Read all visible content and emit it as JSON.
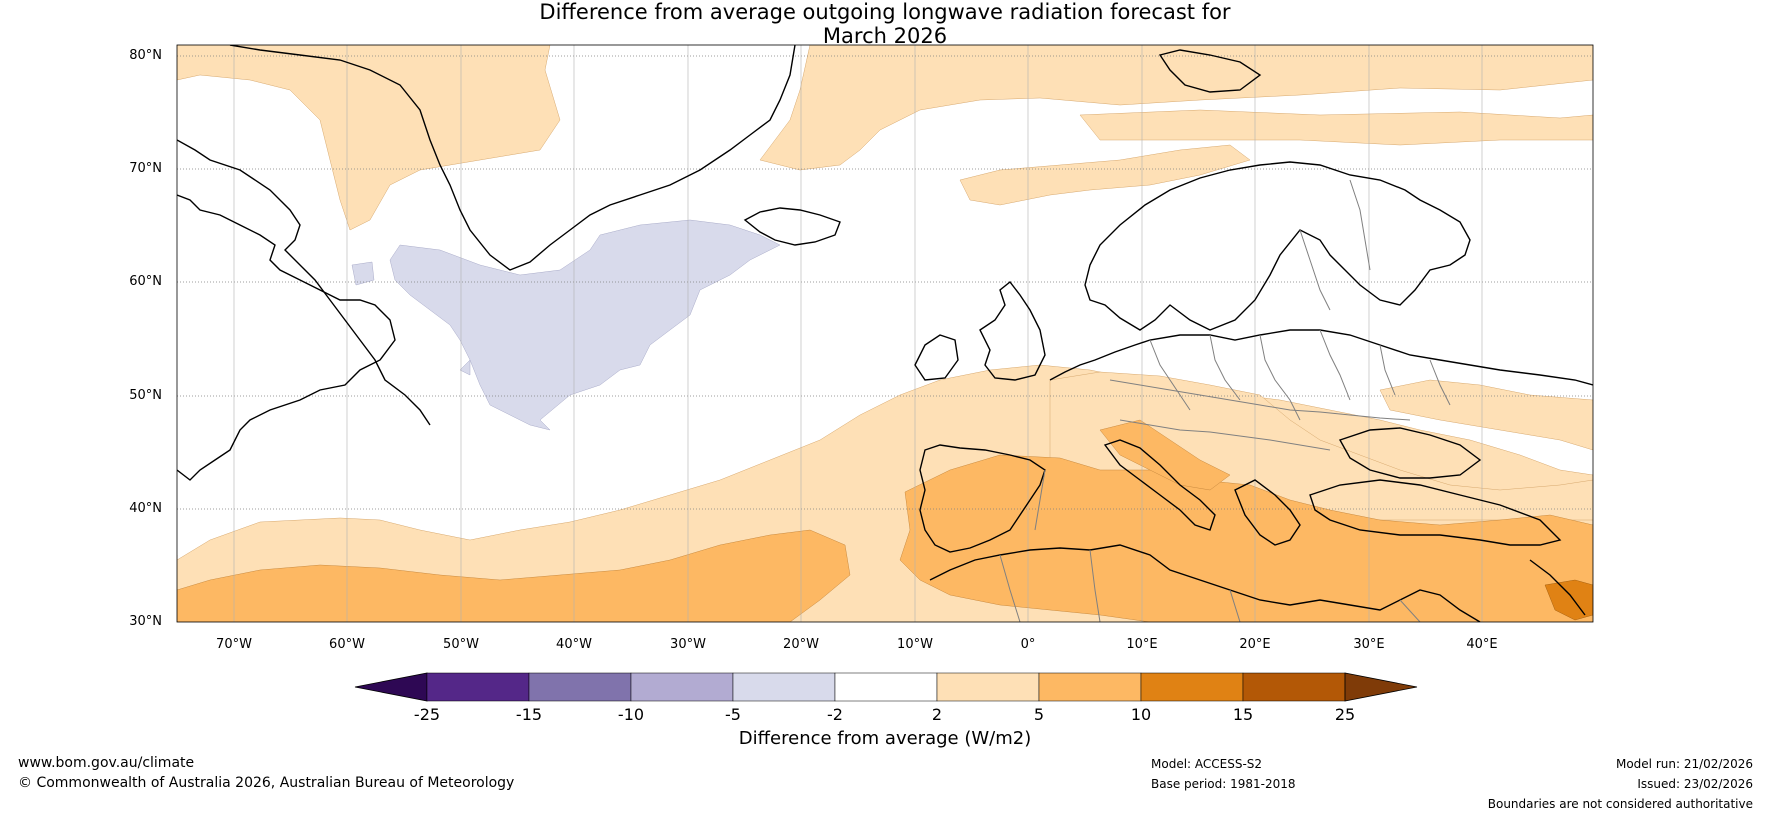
{
  "title_line1": "Difference from average outgoing longwave radiation forecast for",
  "title_line2": "March 2026",
  "lat_labels": [
    "80°N",
    "70°N",
    "60°N",
    "50°N",
    "40°N",
    "30°N"
  ],
  "lon_labels": [
    "70°W",
    "60°W",
    "50°W",
    "40°W",
    "30°W",
    "20°W",
    "10°W",
    "0°",
    "10°E",
    "20°E",
    "30°E",
    "40°E"
  ],
  "colorbar": {
    "ticks": [
      "-25",
      "-15",
      "-10",
      "-5",
      "-2",
      "2",
      "5",
      "10",
      "15",
      "25"
    ],
    "colors": [
      "#2e0854",
      "#542788",
      "#8073ac",
      "#b2abd2",
      "#d8daeb",
      "#ffffff",
      "#fee0b6",
      "#fdb863",
      "#e08214",
      "#b35806",
      "#7f3b08"
    ],
    "label": "Difference from average (W/m2)"
  },
  "footer": {
    "website": "www.bom.gov.au/climate",
    "copyright": "© Commonwealth of Australia 2026, Australian Bureau of Meteorology",
    "model": "Model: ACCESS-S2",
    "base_period": "Base period: 1981-2018",
    "model_run": "Model run: 21/02/2026",
    "issued": "Issued: 23/02/2026",
    "disclaimer": "Boundaries are not considered authoritative"
  }
}
